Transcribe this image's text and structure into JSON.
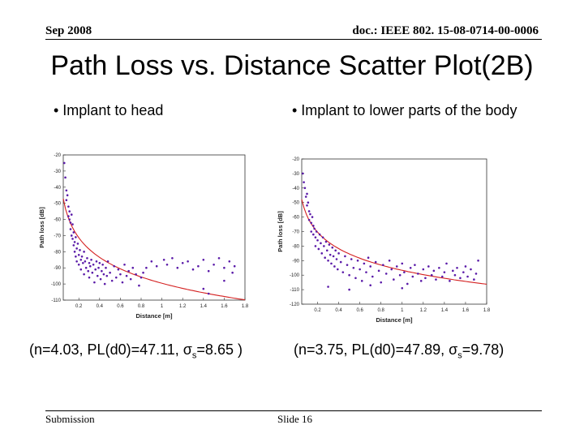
{
  "header": {
    "date": "Sep 2008",
    "doc_id": "doc.: IEEE 802. 15-08-0714-00-0006"
  },
  "title": "Path Loss vs. Distance Scatter Plot(2B)",
  "bullets": {
    "left": "• Implant to head",
    "right": "• Implant to lower parts of the body"
  },
  "captions": {
    "left": {
      "prefix": "(n=4.03, PL(d0)=47.11, σ",
      "sub": "s",
      "suffix": "=8.65 )"
    },
    "right": {
      "prefix": "(n=3.75, PL(d0)=47.89, σ",
      "sub": "s",
      "suffix": "=9.78)"
    }
  },
  "footer": {
    "left": "Submission",
    "center": "Slide 16"
  },
  "colors": {
    "points": "#5a1aa8",
    "fit": "#d42020",
    "frame": "#333333"
  },
  "chart_data": [
    {
      "type": "scatter",
      "name": "implant-to-head",
      "title": "",
      "xlabel": "Distance [m]",
      "ylabel": "Path loss [dB]",
      "xlim": [
        0.05,
        1.8
      ],
      "ylim": [
        -110,
        -20
      ],
      "xticks": [
        0.2,
        0.4,
        0.6,
        0.8,
        1,
        1.2,
        1.4,
        1.6,
        1.8
      ],
      "xticklabels": [
        "0.2",
        "0.4",
        "0.6",
        "0.8",
        "1",
        "1.2",
        "1.4",
        "1.6",
        "1.8"
      ],
      "yticks": [
        -20,
        -30,
        -40,
        -50,
        -60,
        -70,
        -80,
        -90,
        -100,
        -110
      ],
      "yticklabels": [
        "-20",
        "-30",
        "-40",
        "-50",
        "-60",
        "-70",
        "-80",
        "-90",
        "-100",
        "-110"
      ],
      "fit": {
        "n": 4.03,
        "pl_d0": 47.11,
        "sigma": 8.65,
        "d0": 0.05
      },
      "points": [
        [
          0.06,
          -25
        ],
        [
          0.07,
          -34
        ],
        [
          0.08,
          -42
        ],
        [
          0.08,
          -48
        ],
        [
          0.09,
          -45
        ],
        [
          0.1,
          -52
        ],
        [
          0.1,
          -58
        ],
        [
          0.11,
          -55
        ],
        [
          0.11,
          -60
        ],
        [
          0.12,
          -62
        ],
        [
          0.12,
          -66
        ],
        [
          0.13,
          -57
        ],
        [
          0.13,
          -70
        ],
        [
          0.14,
          -63
        ],
        [
          0.14,
          -72
        ],
        [
          0.15,
          -68
        ],
        [
          0.15,
          -76
        ],
        [
          0.16,
          -74
        ],
        [
          0.16,
          -80
        ],
        [
          0.17,
          -71
        ],
        [
          0.17,
          -83
        ],
        [
          0.18,
          -78
        ],
        [
          0.18,
          -86
        ],
        [
          0.19,
          -75
        ],
        [
          0.2,
          -82
        ],
        [
          0.2,
          -88
        ],
        [
          0.21,
          -79
        ],
        [
          0.22,
          -85
        ],
        [
          0.22,
          -91
        ],
        [
          0.23,
          -83
        ],
        [
          0.24,
          -87
        ],
        [
          0.25,
          -80
        ],
        [
          0.25,
          -94
        ],
        [
          0.26,
          -86
        ],
        [
          0.27,
          -90
        ],
        [
          0.28,
          -84
        ],
        [
          0.29,
          -92
        ],
        [
          0.3,
          -87
        ],
        [
          0.3,
          -96
        ],
        [
          0.31,
          -89
        ],
        [
          0.32,
          -85
        ],
        [
          0.33,
          -93
        ],
        [
          0.34,
          -88
        ],
        [
          0.35,
          -99
        ],
        [
          0.36,
          -91
        ],
        [
          0.37,
          -86
        ],
        [
          0.38,
          -95
        ],
        [
          0.39,
          -90
        ],
        [
          0.4,
          -87
        ],
        [
          0.41,
          -97
        ],
        [
          0.42,
          -92
        ],
        [
          0.43,
          -88
        ],
        [
          0.44,
          -94
        ],
        [
          0.45,
          -100
        ],
        [
          0.46,
          -90
        ],
        [
          0.47,
          -95
        ],
        [
          0.48,
          -86
        ],
        [
          0.5,
          -93
        ],
        [
          0.52,
          -98
        ],
        [
          0.54,
          -89
        ],
        [
          0.56,
          -96
        ],
        [
          0.58,
          -91
        ],
        [
          0.6,
          -94
        ],
        [
          0.62,
          -99
        ],
        [
          0.64,
          -88
        ],
        [
          0.66,
          -95
        ],
        [
          0.68,
          -92
        ],
        [
          0.7,
          -97
        ],
        [
          0.72,
          -90
        ],
        [
          0.75,
          -94
        ],
        [
          0.78,
          -101
        ],
        [
          0.8,
          -96
        ],
        [
          0.82,
          -93
        ],
        [
          0.85,
          -90
        ],
        [
          1.02,
          -85
        ],
        [
          1.05,
          -88
        ],
        [
          1.1,
          -84
        ],
        [
          1.15,
          -90
        ],
        [
          1.2,
          -87
        ],
        [
          1.25,
          -86
        ],
        [
          1.3,
          -91
        ],
        [
          1.35,
          -89
        ],
        [
          1.4,
          -85
        ],
        [
          1.45,
          -92
        ],
        [
          1.5,
          -88
        ],
        [
          1.55,
          -84
        ],
        [
          1.6,
          -90
        ],
        [
          1.65,
          -86
        ],
        [
          1.7,
          -89
        ],
        [
          1.4,
          -103
        ],
        [
          1.45,
          -106
        ],
        [
          1.6,
          -98
        ],
        [
          1.68,
          -93
        ],
        [
          0.9,
          -86
        ],
        [
          0.95,
          -89
        ]
      ]
    },
    {
      "type": "scatter",
      "name": "implant-to-lower-body",
      "title": "",
      "xlabel": "Distance [m]",
      "ylabel": "Path loss [dB]",
      "xlim": [
        0.05,
        1.8
      ],
      "ylim": [
        -120,
        -20
      ],
      "xticks": [
        0.2,
        0.4,
        0.6,
        0.8,
        1,
        1.2,
        1.4,
        1.6,
        1.8
      ],
      "xticklabels": [
        "0.2",
        "0.4",
        "0.6",
        "0.8",
        "1",
        "1.2",
        "1.4",
        "1.6",
        "1.8"
      ],
      "yticks": [
        -20,
        -30,
        -40,
        -50,
        -60,
        -70,
        -80,
        -90,
        -100,
        -110,
        -120
      ],
      "yticklabels": [
        "-20",
        "-30",
        "-40",
        "-50",
        "-60",
        "-70",
        "-80",
        "-90",
        "-100",
        "-110",
        "-120"
      ],
      "fit": {
        "n": 3.75,
        "pl_d0": 47.89,
        "sigma": 9.78,
        "d0": 0.05
      },
      "points": [
        [
          0.06,
          -30
        ],
        [
          0.07,
          -36
        ],
        [
          0.08,
          -40
        ],
        [
          0.09,
          -46
        ],
        [
          0.1,
          -44
        ],
        [
          0.1,
          -52
        ],
        [
          0.11,
          -50
        ],
        [
          0.12,
          -56
        ],
        [
          0.12,
          -62
        ],
        [
          0.13,
          -58
        ],
        [
          0.14,
          -64
        ],
        [
          0.14,
          -70
        ],
        [
          0.15,
          -60
        ],
        [
          0.16,
          -66
        ],
        [
          0.16,
          -72
        ],
        [
          0.17,
          -68
        ],
        [
          0.18,
          -74
        ],
        [
          0.18,
          -80
        ],
        [
          0.19,
          -70
        ],
        [
          0.2,
          -76
        ],
        [
          0.21,
          -82
        ],
        [
          0.22,
          -72
        ],
        [
          0.23,
          -78
        ],
        [
          0.24,
          -85
        ],
        [
          0.25,
          -74
        ],
        [
          0.26,
          -80
        ],
        [
          0.27,
          -88
        ],
        [
          0.28,
          -77
        ],
        [
          0.29,
          -83
        ],
        [
          0.3,
          -90
        ],
        [
          0.31,
          -79
        ],
        [
          0.32,
          -86
        ],
        [
          0.33,
          -92
        ],
        [
          0.34,
          -81
        ],
        [
          0.35,
          -87
        ],
        [
          0.36,
          -94
        ],
        [
          0.37,
          -83
        ],
        [
          0.38,
          -89
        ],
        [
          0.39,
          -96
        ],
        [
          0.4,
          -85
        ],
        [
          0.42,
          -91
        ],
        [
          0.44,
          -98
        ],
        [
          0.46,
          -87
        ],
        [
          0.48,
          -93
        ],
        [
          0.5,
          -100
        ],
        [
          0.52,
          -89
        ],
        [
          0.54,
          -95
        ],
        [
          0.56,
          -102
        ],
        [
          0.58,
          -90
        ],
        [
          0.6,
          -96
        ],
        [
          0.62,
          -104
        ],
        [
          0.64,
          -92
        ],
        [
          0.66,
          -98
        ],
        [
          0.68,
          -88
        ],
        [
          0.7,
          -94
        ],
        [
          0.72,
          -101
        ],
        [
          0.75,
          -91
        ],
        [
          0.78,
          -97
        ],
        [
          0.8,
          -105
        ],
        [
          0.82,
          -93
        ],
        [
          0.85,
          -99
        ],
        [
          0.88,
          -90
        ],
        [
          0.9,
          -96
        ],
        [
          0.92,
          -103
        ],
        [
          0.95,
          -94
        ],
        [
          0.98,
          -100
        ],
        [
          1.0,
          -92
        ],
        [
          1.02,
          -98
        ],
        [
          1.05,
          -106
        ],
        [
          1.08,
          -95
        ],
        [
          1.1,
          -101
        ],
        [
          1.12,
          -93
        ],
        [
          1.15,
          -99
        ],
        [
          1.18,
          -104
        ],
        [
          1.2,
          -96
        ],
        [
          1.22,
          -102
        ],
        [
          1.25,
          -94
        ],
        [
          1.28,
          -100
        ],
        [
          1.3,
          -97
        ],
        [
          1.32,
          -103
        ],
        [
          1.35,
          -95
        ],
        [
          1.38,
          -101
        ],
        [
          1.4,
          -98
        ],
        [
          1.42,
          -92
        ],
        [
          1.45,
          -104
        ],
        [
          1.48,
          -97
        ],
        [
          1.5,
          -100
        ],
        [
          1.52,
          -95
        ],
        [
          1.55,
          -102
        ],
        [
          1.58,
          -98
        ],
        [
          1.6,
          -94
        ],
        [
          1.62,
          -101
        ],
        [
          1.65,
          -96
        ],
        [
          1.68,
          -103
        ],
        [
          1.7,
          -99
        ],
        [
          1.72,
          -90
        ],
        [
          0.3,
          -108
        ],
        [
          0.5,
          -110
        ],
        [
          0.7,
          -107
        ],
        [
          1.0,
          -109
        ]
      ]
    }
  ]
}
